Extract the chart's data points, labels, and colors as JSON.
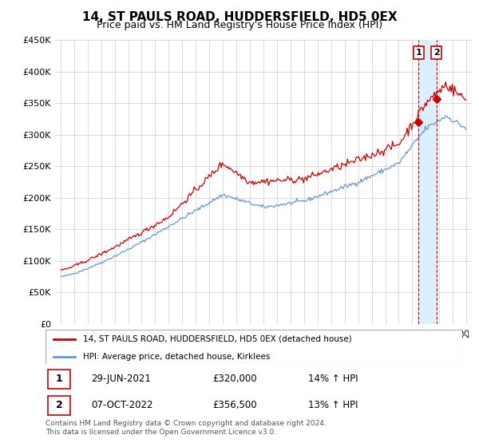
{
  "title": "14, ST PAULS ROAD, HUDDERSFIELD, HD5 0EX",
  "subtitle": "Price paid vs. HM Land Registry's House Price Index (HPI)",
  "legend_line1": "14, ST PAULS ROAD, HUDDERSFIELD, HD5 0EX (detached house)",
  "legend_line2": "HPI: Average price, detached house, Kirklees",
  "annotation1_date": "29-JUN-2021",
  "annotation1_price": "£320,000",
  "annotation1_hpi": "14% ↑ HPI",
  "annotation2_date": "07-OCT-2022",
  "annotation2_price": "£356,500",
  "annotation2_hpi": "13% ↑ HPI",
  "footer": "Contains HM Land Registry data © Crown copyright and database right 2024.\nThis data is licensed under the Open Government Licence v3.0.",
  "red_color": "#cc0000",
  "blue_color": "#6699cc",
  "shade_color": "#ddeeff",
  "ylim": [
    0,
    450000
  ],
  "yticks": [
    0,
    50000,
    100000,
    150000,
    200000,
    250000,
    300000,
    350000,
    400000,
    450000
  ],
  "sale1_price": 320000,
  "sale2_price": 356500,
  "sale1_year": 2021,
  "sale1_month": 6,
  "sale2_year": 2022,
  "sale2_month": 10
}
